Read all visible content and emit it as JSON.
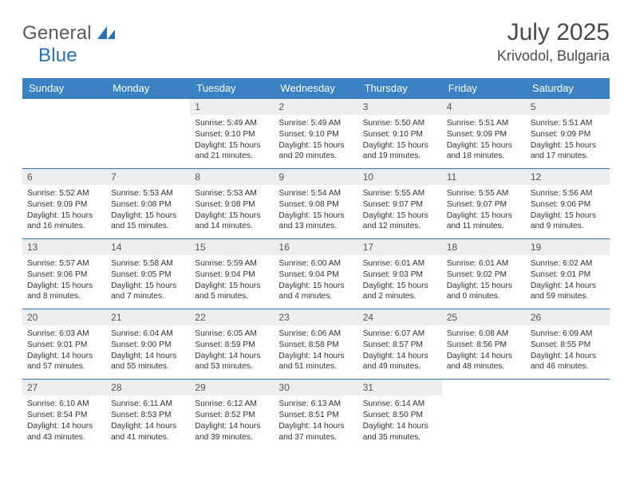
{
  "logo": {
    "text1": "General",
    "text2": "Blue"
  },
  "header": {
    "month": "July 2025",
    "location": "Krivodol, Bulgaria"
  },
  "dayHeaders": [
    "Sunday",
    "Monday",
    "Tuesday",
    "Wednesday",
    "Thursday",
    "Friday",
    "Saturday"
  ],
  "colors": {
    "headerBg": "#3a82c4",
    "headerText": "#ffffff",
    "weekBorder": "#2a72b5",
    "dayBg": "#eceeef",
    "text": "#333333",
    "logoGray": "#5a5a5a",
    "logoBlue": "#2a72b5"
  },
  "weeks": [
    [
      {
        "n": "",
        "empty": true
      },
      {
        "n": "",
        "empty": true
      },
      {
        "n": "1",
        "sr": "5:49 AM",
        "ss": "9:10 PM",
        "dl": "15 hours and 21 minutes."
      },
      {
        "n": "2",
        "sr": "5:49 AM",
        "ss": "9:10 PM",
        "dl": "15 hours and 20 minutes."
      },
      {
        "n": "3",
        "sr": "5:50 AM",
        "ss": "9:10 PM",
        "dl": "15 hours and 19 minutes."
      },
      {
        "n": "4",
        "sr": "5:51 AM",
        "ss": "9:09 PM",
        "dl": "15 hours and 18 minutes."
      },
      {
        "n": "5",
        "sr": "5:51 AM",
        "ss": "9:09 PM",
        "dl": "15 hours and 17 minutes."
      }
    ],
    [
      {
        "n": "6",
        "sr": "5:52 AM",
        "ss": "9:09 PM",
        "dl": "15 hours and 16 minutes."
      },
      {
        "n": "7",
        "sr": "5:53 AM",
        "ss": "9:08 PM",
        "dl": "15 hours and 15 minutes."
      },
      {
        "n": "8",
        "sr": "5:53 AM",
        "ss": "9:08 PM",
        "dl": "15 hours and 14 minutes."
      },
      {
        "n": "9",
        "sr": "5:54 AM",
        "ss": "9:08 PM",
        "dl": "15 hours and 13 minutes."
      },
      {
        "n": "10",
        "sr": "5:55 AM",
        "ss": "9:07 PM",
        "dl": "15 hours and 12 minutes."
      },
      {
        "n": "11",
        "sr": "5:55 AM",
        "ss": "9:07 PM",
        "dl": "15 hours and 11 minutes."
      },
      {
        "n": "12",
        "sr": "5:56 AM",
        "ss": "9:06 PM",
        "dl": "15 hours and 9 minutes."
      }
    ],
    [
      {
        "n": "13",
        "sr": "5:57 AM",
        "ss": "9:06 PM",
        "dl": "15 hours and 8 minutes."
      },
      {
        "n": "14",
        "sr": "5:58 AM",
        "ss": "9:05 PM",
        "dl": "15 hours and 7 minutes."
      },
      {
        "n": "15",
        "sr": "5:59 AM",
        "ss": "9:04 PM",
        "dl": "15 hours and 5 minutes."
      },
      {
        "n": "16",
        "sr": "6:00 AM",
        "ss": "9:04 PM",
        "dl": "15 hours and 4 minutes."
      },
      {
        "n": "17",
        "sr": "6:01 AM",
        "ss": "9:03 PM",
        "dl": "15 hours and 2 minutes."
      },
      {
        "n": "18",
        "sr": "6:01 AM",
        "ss": "9:02 PM",
        "dl": "15 hours and 0 minutes."
      },
      {
        "n": "19",
        "sr": "6:02 AM",
        "ss": "9:01 PM",
        "dl": "14 hours and 59 minutes."
      }
    ],
    [
      {
        "n": "20",
        "sr": "6:03 AM",
        "ss": "9:01 PM",
        "dl": "14 hours and 57 minutes."
      },
      {
        "n": "21",
        "sr": "6:04 AM",
        "ss": "9:00 PM",
        "dl": "14 hours and 55 minutes."
      },
      {
        "n": "22",
        "sr": "6:05 AM",
        "ss": "8:59 PM",
        "dl": "14 hours and 53 minutes."
      },
      {
        "n": "23",
        "sr": "6:06 AM",
        "ss": "8:58 PM",
        "dl": "14 hours and 51 minutes."
      },
      {
        "n": "24",
        "sr": "6:07 AM",
        "ss": "8:57 PM",
        "dl": "14 hours and 49 minutes."
      },
      {
        "n": "25",
        "sr": "6:08 AM",
        "ss": "8:56 PM",
        "dl": "14 hours and 48 minutes."
      },
      {
        "n": "26",
        "sr": "6:09 AM",
        "ss": "8:55 PM",
        "dl": "14 hours and 46 minutes."
      }
    ],
    [
      {
        "n": "27",
        "sr": "6:10 AM",
        "ss": "8:54 PM",
        "dl": "14 hours and 43 minutes."
      },
      {
        "n": "28",
        "sr": "6:11 AM",
        "ss": "8:53 PM",
        "dl": "14 hours and 41 minutes."
      },
      {
        "n": "29",
        "sr": "6:12 AM",
        "ss": "8:52 PM",
        "dl": "14 hours and 39 minutes."
      },
      {
        "n": "30",
        "sr": "6:13 AM",
        "ss": "8:51 PM",
        "dl": "14 hours and 37 minutes."
      },
      {
        "n": "31",
        "sr": "6:14 AM",
        "ss": "8:50 PM",
        "dl": "14 hours and 35 minutes."
      },
      {
        "n": "",
        "empty": true
      },
      {
        "n": "",
        "empty": true
      }
    ]
  ],
  "labels": {
    "sunrise": "Sunrise: ",
    "sunset": "Sunset: ",
    "daylight": "Daylight: "
  }
}
